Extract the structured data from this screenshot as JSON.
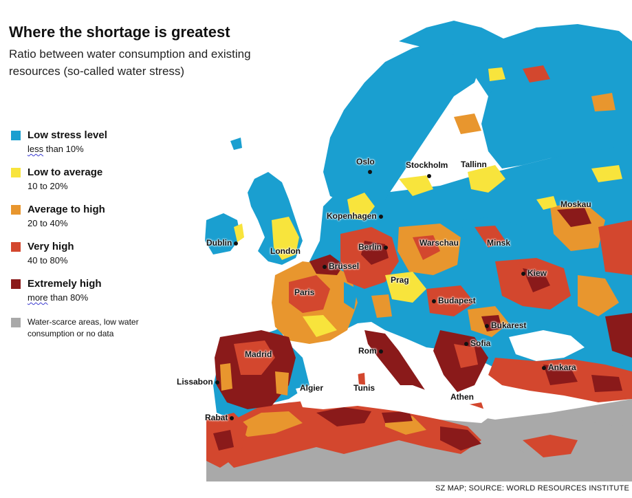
{
  "title": "Where the shortage is greatest",
  "subtitle": "Ratio between water consumption and existing resources (so-called water stress)",
  "legend": {
    "items": [
      {
        "label": "Low stress level",
        "range_prefix": "less",
        "range_rest": " than 10%",
        "color": "#1a9fd0"
      },
      {
        "label": "Low to average",
        "range_prefix": "",
        "range_rest": "10 to 20%",
        "color": "#f8e43c"
      },
      {
        "label": "Average to high",
        "range_prefix": "",
        "range_rest": "20 to 40%",
        "color": "#e8962e"
      },
      {
        "label": "Very high",
        "range_prefix": "",
        "range_rest": "40 to 80%",
        "color": "#d3472e"
      },
      {
        "label": "Extremely high",
        "range_prefix": "more",
        "range_rest": " than 80%",
        "color": "#8a1a1a"
      }
    ],
    "grey": {
      "label": "Water-scarce areas, low water consumption or no data",
      "color": "#a9a9a9"
    }
  },
  "cities": {
    "oslo": "Oslo",
    "stockholm": "Stockholm",
    "tallinn": "Tallinn",
    "moskau": "Moskau",
    "kopenhagen": "Kopenhagen",
    "dublin": "Dublin",
    "london": "London",
    "berlin": "Berlin",
    "warschau": "Warschau",
    "minsk": "Minsk",
    "brussel": "Brüssel",
    "kiew": "Kiew",
    "prag": "Prag",
    "paris": "Paris",
    "budapest": "Budapest",
    "bukarest": "Bukarest",
    "sofia": "Sofia",
    "madrid": "Madrid",
    "rom": "Rom",
    "ankara": "Ankara",
    "lissabon": "Lissabon",
    "algier": "Algier",
    "tunis": "Tunis",
    "athen": "Athen",
    "rabat": "Rabat"
  },
  "source": "SZ MAP; SOURCE: WORLD RESOURCES INSTITUTE"
}
